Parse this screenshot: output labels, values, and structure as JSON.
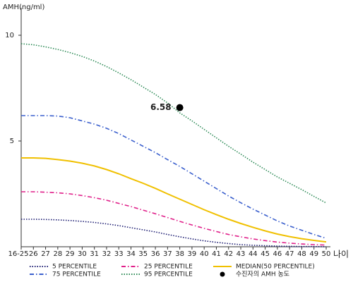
{
  "chart_data": {
    "type": "line",
    "y_label": "AMH(ng/ml)",
    "x_label": "나이",
    "categories": [
      "16-25",
      "26",
      "27",
      "28",
      "29",
      "30",
      "31",
      "32",
      "33",
      "34",
      "35",
      "36",
      "37",
      "38",
      "39",
      "40",
      "41",
      "42",
      "43",
      "44",
      "45",
      "46",
      "47",
      "48",
      "49",
      "50"
    ],
    "ylim": [
      0,
      11.3
    ],
    "yticks": [
      5,
      10
    ],
    "series": [
      {
        "name": "5 PERCENTILE",
        "color": "#1c1c72",
        "dash": "dotted",
        "values": [
          1.3,
          1.3,
          1.29,
          1.27,
          1.24,
          1.2,
          1.15,
          1.08,
          1.0,
          0.9,
          0.8,
          0.7,
          0.58,
          0.47,
          0.37,
          0.28,
          0.21,
          0.15,
          0.1,
          0.07,
          0.05,
          0.03,
          0.02,
          0.01,
          0.01,
          0
        ]
      },
      {
        "name": "25 PERCENTILE",
        "color": "#e0208a",
        "dash": "dashdot",
        "values": [
          2.6,
          2.6,
          2.58,
          2.55,
          2.5,
          2.42,
          2.32,
          2.2,
          2.05,
          1.9,
          1.73,
          1.56,
          1.38,
          1.2,
          1.03,
          0.87,
          0.72,
          0.58,
          0.47,
          0.37,
          0.29,
          0.22,
          0.17,
          0.13,
          0.1,
          0.08
        ]
      },
      {
        "name": "MEDIAN(50 PERCENTILE)",
        "color": "#f0c000",
        "dash": "solid",
        "values": [
          4.2,
          4.2,
          4.18,
          4.12,
          4.05,
          3.95,
          3.82,
          3.65,
          3.45,
          3.22,
          3.0,
          2.76,
          2.5,
          2.25,
          2.0,
          1.75,
          1.52,
          1.3,
          1.1,
          0.92,
          0.75,
          0.6,
          0.48,
          0.38,
          0.3,
          0.23
        ]
      },
      {
        "name": "75 PERCENTILE",
        "color": "#3a5fcd",
        "dash": "dashdot",
        "values": [
          6.2,
          6.2,
          6.2,
          6.18,
          6.1,
          5.95,
          5.8,
          5.6,
          5.35,
          5.05,
          4.75,
          4.45,
          4.12,
          3.8,
          3.45,
          3.1,
          2.75,
          2.4,
          2.08,
          1.78,
          1.5,
          1.22,
          0.98,
          0.78,
          0.58,
          0.4
        ]
      },
      {
        "name": "95 PERCENTILE",
        "color": "#2e8b57",
        "dash": "dotted",
        "values": [
          9.6,
          9.55,
          9.45,
          9.33,
          9.18,
          9.0,
          8.78,
          8.52,
          8.22,
          7.9,
          7.55,
          7.2,
          6.8,
          6.33,
          5.95,
          5.55,
          5.15,
          4.75,
          4.38,
          4.0,
          3.65,
          3.3,
          3.0,
          2.7,
          2.38,
          2.07
        ]
      }
    ],
    "patient": {
      "name": "수진자의 AMH 농도",
      "category": "38",
      "value": 6.58,
      "color": "#000000"
    }
  }
}
